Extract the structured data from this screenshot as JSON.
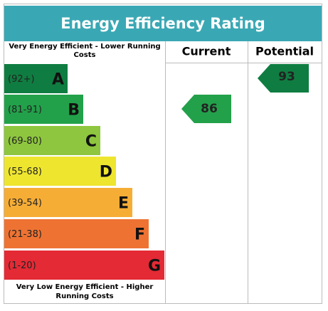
{
  "title": "Energy Efficiency Rating",
  "top_note": "Very Energy Efficient - Lower Running Costs",
  "bottom_note": "Very Low Energy Efficient - Higher Running Costs",
  "columns": [
    "Current",
    "Potential"
  ],
  "bands": [
    {
      "range": "(92+)",
      "letter": "A",
      "color": "#0f7d41"
    },
    {
      "range": "(81-91)",
      "letter": "B",
      "color": "#22a14a"
    },
    {
      "range": "(69-80)",
      "letter": "C",
      "color": "#8ec63f"
    },
    {
      "range": "(55-68)",
      "letter": "D",
      "color": "#eee52f"
    },
    {
      "range": "(39-54)",
      "letter": "E",
      "color": "#f6ad36"
    },
    {
      "range": "(21-38)",
      "letter": "F",
      "color": "#ee7333"
    },
    {
      "range": "(1-20)",
      "letter": "G",
      "color": "#e42a35"
    }
  ],
  "current": 86,
  "potential": 93
}
